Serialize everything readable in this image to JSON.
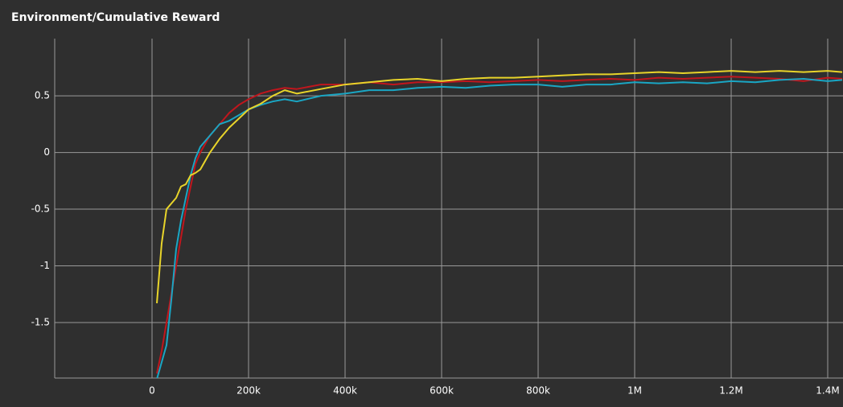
{
  "chart_data": {
    "type": "line",
    "title": "Environment/Cumulative Reward",
    "x": [
      10000,
      20000,
      30000,
      40000,
      50000,
      60000,
      70000,
      80000,
      90000,
      100000,
      120000,
      140000,
      160000,
      180000,
      200000,
      225000,
      250000,
      275000,
      300000,
      350000,
      400000,
      450000,
      500000,
      550000,
      600000,
      650000,
      700000,
      750000,
      800000,
      850000,
      900000,
      950000,
      1000000,
      1050000,
      1100000,
      1150000,
      1200000,
      1250000,
      1300000,
      1350000,
      1400000,
      1430000
    ],
    "series": [
      {
        "color": "#c0161d",
        "values": [
          -1.95,
          -1.75,
          -1.5,
          -1.25,
          -1.0,
          -0.75,
          -0.5,
          -0.3,
          -0.1,
          0.0,
          0.15,
          0.25,
          0.35,
          0.42,
          0.47,
          0.52,
          0.55,
          0.57,
          0.56,
          0.6,
          0.6,
          0.62,
          0.6,
          0.62,
          0.62,
          0.63,
          0.62,
          0.63,
          0.64,
          0.63,
          0.64,
          0.65,
          0.64,
          0.66,
          0.65,
          0.66,
          0.67,
          0.66,
          0.65,
          0.63,
          0.66,
          0.65
        ]
      },
      {
        "color": "#1aa6c4",
        "values": [
          -2.0,
          -1.85,
          -1.7,
          -1.3,
          -0.85,
          -0.6,
          -0.4,
          -0.2,
          -0.05,
          0.05,
          0.15,
          0.25,
          0.28,
          0.33,
          0.38,
          0.42,
          0.45,
          0.47,
          0.45,
          0.5,
          0.52,
          0.55,
          0.55,
          0.57,
          0.58,
          0.57,
          0.59,
          0.6,
          0.6,
          0.58,
          0.6,
          0.6,
          0.62,
          0.61,
          0.62,
          0.61,
          0.63,
          0.62,
          0.64,
          0.65,
          0.63,
          0.64
        ]
      },
      {
        "color": "#e8d42a",
        "values": [
          -1.33,
          -0.8,
          -0.5,
          -0.45,
          -0.4,
          -0.3,
          -0.28,
          -0.2,
          -0.18,
          -0.15,
          0.0,
          0.12,
          0.22,
          0.3,
          0.38,
          0.43,
          0.5,
          0.55,
          0.52,
          0.56,
          0.6,
          0.62,
          0.64,
          0.65,
          0.63,
          0.65,
          0.66,
          0.66,
          0.67,
          0.68,
          0.69,
          0.69,
          0.7,
          0.71,
          0.7,
          0.71,
          0.72,
          0.71,
          0.72,
          0.71,
          0.72,
          0.71
        ]
      }
    ],
    "xlim": [
      -201667,
      1431667
    ],
    "xticks": [
      0,
      {
        "value": 200000,
        "label": "200k"
      },
      {
        "value": 400000,
        "label": "400k"
      },
      {
        "value": 600000,
        "label": "600k"
      },
      {
        "value": 800000,
        "label": "800k"
      },
      {
        "value": 1000000,
        "label": "1M"
      },
      {
        "value": 1200000,
        "label": "1.2M"
      },
      {
        "value": 1400000,
        "label": "1.4M"
      }
    ],
    "ylim": [
      -1.99,
      1.005
    ],
    "yticks": [
      -1.5,
      -1,
      -0.5,
      0,
      0.5
    ],
    "grid": true
  }
}
